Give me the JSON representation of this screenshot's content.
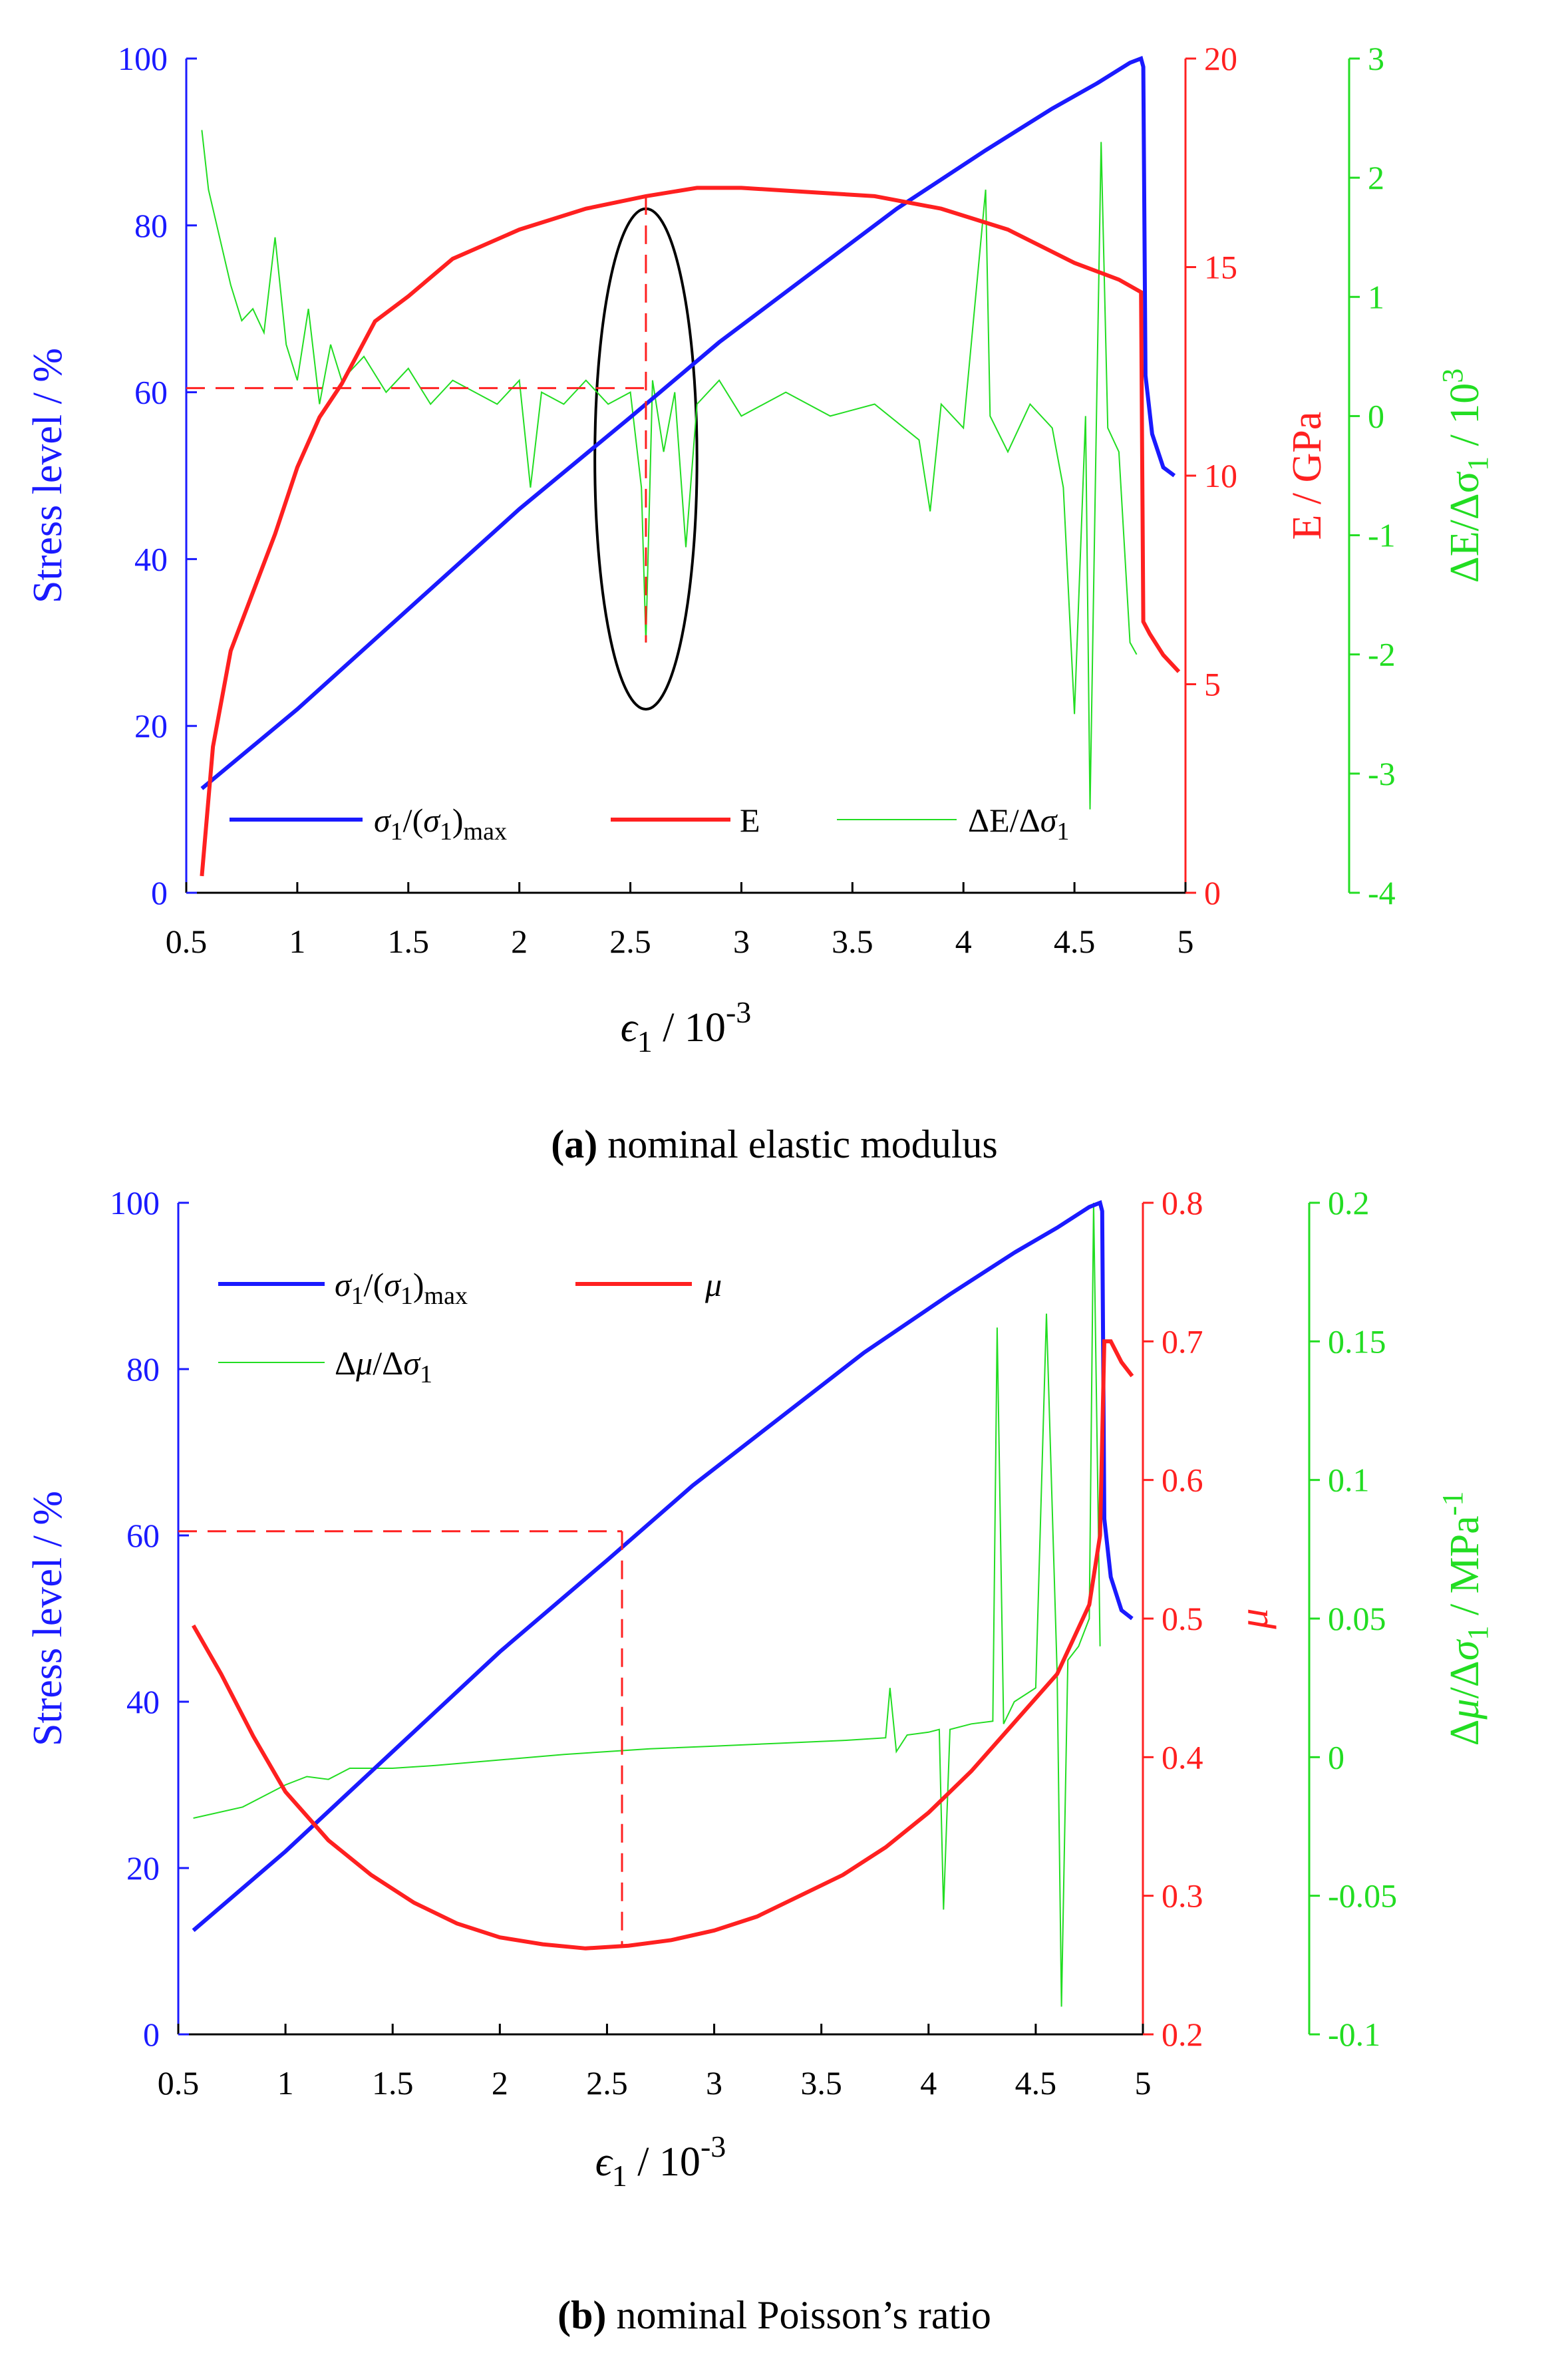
{
  "colors": {
    "blue": "#1a1aff",
    "red": "#ff2020",
    "green": "#22dd22",
    "black": "#000000"
  },
  "chart_data": [
    {
      "id": "a",
      "type": "line",
      "caption_bold": "(a)",
      "caption_text": " nominal elastic modulus",
      "xlabel": "ϵ1 / 10-3",
      "xlim": [
        0.5,
        5
      ],
      "xticks": [
        "0.5",
        "1",
        "1.5",
        "2",
        "2.5",
        "3",
        "3.5",
        "4",
        "4.5",
        "5"
      ],
      "axes": {
        "left": {
          "label": "Stress level / %",
          "lim": [
            0,
            100
          ],
          "ticks": [
            "0",
            "20",
            "40",
            "60",
            "80",
            "100"
          ]
        },
        "right1": {
          "label": "E / GPa",
          "lim": [
            0,
            20
          ],
          "ticks": [
            "0",
            "5",
            "10",
            "15",
            "20"
          ]
        },
        "right2": {
          "label": "ΔE/Δσ1 / 10^3",
          "lim": [
            -4,
            3
          ],
          "ticks": [
            "-4",
            "-3",
            "-2",
            "-1",
            "0",
            "1",
            "2",
            "3"
          ]
        }
      },
      "legend": {
        "placement": "bottom",
        "entries": [
          "σ1/(σ1)max",
          "E",
          "ΔE/Δσ1"
        ]
      },
      "annotations": {
        "marker_x": 2.57,
        "marker_stress": 60.5,
        "ellipse": {
          "center_x": 2.57,
          "center_stress": 52,
          "half_width_x": 0.23,
          "half_height_stress": 30
        }
      },
      "series": [
        {
          "name": "σ1/(σ1)max",
          "axis": "left",
          "x": [
            0.57,
            1.0,
            1.5,
            2.0,
            2.5,
            2.9,
            3.3,
            3.7,
            4.1,
            4.4,
            4.6,
            4.75,
            4.8,
            4.81,
            4.82,
            4.85,
            4.9,
            4.95
          ],
          "y": [
            12.5,
            22,
            34,
            46,
            57,
            66,
            74,
            82,
            89,
            94,
            97,
            99.5,
            100,
            99,
            62,
            55,
            51,
            50
          ]
        },
        {
          "name": "E",
          "axis": "right1",
          "x": [
            0.57,
            0.62,
            0.7,
            0.8,
            0.9,
            1.0,
            1.1,
            1.2,
            1.35,
            1.5,
            1.7,
            2.0,
            2.3,
            2.57,
            2.8,
            3.0,
            3.3,
            3.6,
            3.9,
            4.2,
            4.5,
            4.7,
            4.8,
            4.81,
            4.84,
            4.9,
            4.97
          ],
          "y": [
            0.4,
            3.5,
            5.8,
            7.2,
            8.6,
            10.2,
            11.4,
            12.2,
            13.7,
            14.3,
            15.2,
            15.9,
            16.4,
            16.7,
            16.9,
            16.9,
            16.8,
            16.7,
            16.4,
            15.9,
            15.1,
            14.7,
            14.4,
            6.5,
            6.2,
            5.7,
            5.3
          ]
        },
        {
          "name": "ΔE/Δσ1",
          "axis": "right2",
          "x": [
            0.57,
            0.6,
            0.65,
            0.7,
            0.75,
            0.8,
            0.85,
            0.9,
            0.95,
            1.0,
            1.05,
            1.1,
            1.15,
            1.2,
            1.3,
            1.4,
            1.5,
            1.6,
            1.7,
            1.8,
            1.9,
            2.0,
            2.05,
            2.1,
            2.2,
            2.3,
            2.4,
            2.5,
            2.55,
            2.57,
            2.6,
            2.65,
            2.7,
            2.75,
            2.8,
            2.9,
            3.0,
            3.2,
            3.4,
            3.6,
            3.8,
            3.85,
            3.9,
            4.0,
            4.1,
            4.12,
            4.2,
            4.3,
            4.4,
            4.45,
            4.5,
            4.55,
            4.57,
            4.6,
            4.62,
            4.65,
            4.7,
            4.75,
            4.78
          ],
          "y": [
            2.4,
            1.9,
            1.5,
            1.1,
            0.8,
            0.9,
            0.7,
            1.5,
            0.6,
            0.3,
            0.9,
            0.1,
            0.6,
            0.3,
            0.5,
            0.2,
            0.4,
            0.1,
            0.3,
            0.2,
            0.1,
            0.3,
            -0.6,
            0.2,
            0.1,
            0.3,
            0.1,
            0.2,
            -0.6,
            -1.9,
            0.3,
            -0.3,
            0.2,
            -1.1,
            0.1,
            0.3,
            0.0,
            0.2,
            0.0,
            0.1,
            -0.2,
            -0.8,
            0.1,
            -0.1,
            1.9,
            0.0,
            -0.3,
            0.1,
            -0.1,
            -0.6,
            -2.5,
            0.0,
            -3.3,
            0.1,
            2.3,
            -0.1,
            -0.3,
            -1.9,
            -2.0
          ]
        }
      ]
    },
    {
      "id": "b",
      "type": "line",
      "caption_bold": "(b)",
      "caption_text": " nominal Poisson’s ratio",
      "xlabel": "ϵ1 / 10-3",
      "xlim": [
        0.5,
        5
      ],
      "xticks": [
        "0.5",
        "1",
        "1.5",
        "2",
        "2.5",
        "3",
        "3.5",
        "4",
        "4.5",
        "5"
      ],
      "axes": {
        "left": {
          "label": "Stress level / %",
          "lim": [
            0,
            100
          ],
          "ticks": [
            "0",
            "20",
            "40",
            "60",
            "80",
            "100"
          ]
        },
        "right1": {
          "label": "μ",
          "lim": [
            0.2,
            0.8
          ],
          "ticks": [
            "0.2",
            "0.3",
            "0.4",
            "0.5",
            "0.6",
            "0.7",
            "0.8"
          ]
        },
        "right2": {
          "label": "Δμ/Δσ1 / MPa-1",
          "lim": [
            -0.1,
            0.2
          ],
          "ticks": [
            "-0.1",
            "-0.05",
            "0",
            "0.05",
            "0.1",
            "0.15",
            "0.2"
          ]
        }
      },
      "legend": {
        "placement": "top-left",
        "entries": [
          "σ1/(σ1)max",
          "μ",
          "Δμ/Δσ1"
        ]
      },
      "annotations": {
        "marker_x": 2.57,
        "marker_stress": 60.5
      },
      "series": [
        {
          "name": "σ1/(σ1)max",
          "axis": "left",
          "x": [
            0.57,
            1.0,
            1.5,
            2.0,
            2.5,
            2.9,
            3.3,
            3.7,
            4.1,
            4.4,
            4.6,
            4.75,
            4.8,
            4.81,
            4.82,
            4.85,
            4.9,
            4.95
          ],
          "y": [
            12.5,
            22,
            34,
            46,
            57,
            66,
            74,
            82,
            89,
            94,
            97,
            99.5,
            100,
            99,
            62,
            55,
            51,
            50
          ]
        },
        {
          "name": "μ",
          "axis": "right1",
          "x": [
            0.57,
            0.7,
            0.85,
            1.0,
            1.2,
            1.4,
            1.6,
            1.8,
            2.0,
            2.2,
            2.4,
            2.6,
            2.8,
            3.0,
            3.2,
            3.4,
            3.6,
            3.8,
            4.0,
            4.2,
            4.4,
            4.6,
            4.75,
            4.8,
            4.82,
            4.85,
            4.9,
            4.95
          ],
          "y": [
            0.495,
            0.46,
            0.415,
            0.375,
            0.34,
            0.315,
            0.295,
            0.28,
            0.27,
            0.265,
            0.262,
            0.264,
            0.268,
            0.275,
            0.285,
            0.3,
            0.315,
            0.335,
            0.36,
            0.39,
            0.425,
            0.46,
            0.51,
            0.56,
            0.7,
            0.7,
            0.685,
            0.675
          ]
        },
        {
          "name": "Δμ/Δσ1",
          "axis": "right2",
          "x": [
            0.57,
            0.8,
            1.0,
            1.1,
            1.2,
            1.3,
            1.5,
            1.7,
            2.0,
            2.3,
            2.5,
            2.7,
            3.0,
            3.3,
            3.6,
            3.8,
            3.82,
            3.85,
            3.9,
            4.0,
            4.05,
            4.07,
            4.1,
            4.2,
            4.3,
            4.32,
            4.35,
            4.4,
            4.5,
            4.55,
            4.6,
            4.62,
            4.65,
            4.7,
            4.75,
            4.77,
            4.8
          ],
          "y": [
            -0.022,
            -0.018,
            -0.01,
            -0.007,
            -0.008,
            -0.004,
            -0.004,
            -0.003,
            -0.001,
            0.001,
            0.002,
            0.003,
            0.004,
            0.005,
            0.006,
            0.007,
            0.025,
            0.002,
            0.008,
            0.009,
            0.01,
            -0.055,
            0.01,
            0.012,
            0.013,
            0.155,
            0.012,
            0.02,
            0.025,
            0.16,
            0.03,
            -0.09,
            0.035,
            0.04,
            0.05,
            0.2,
            0.04
          ]
        }
      ]
    }
  ]
}
